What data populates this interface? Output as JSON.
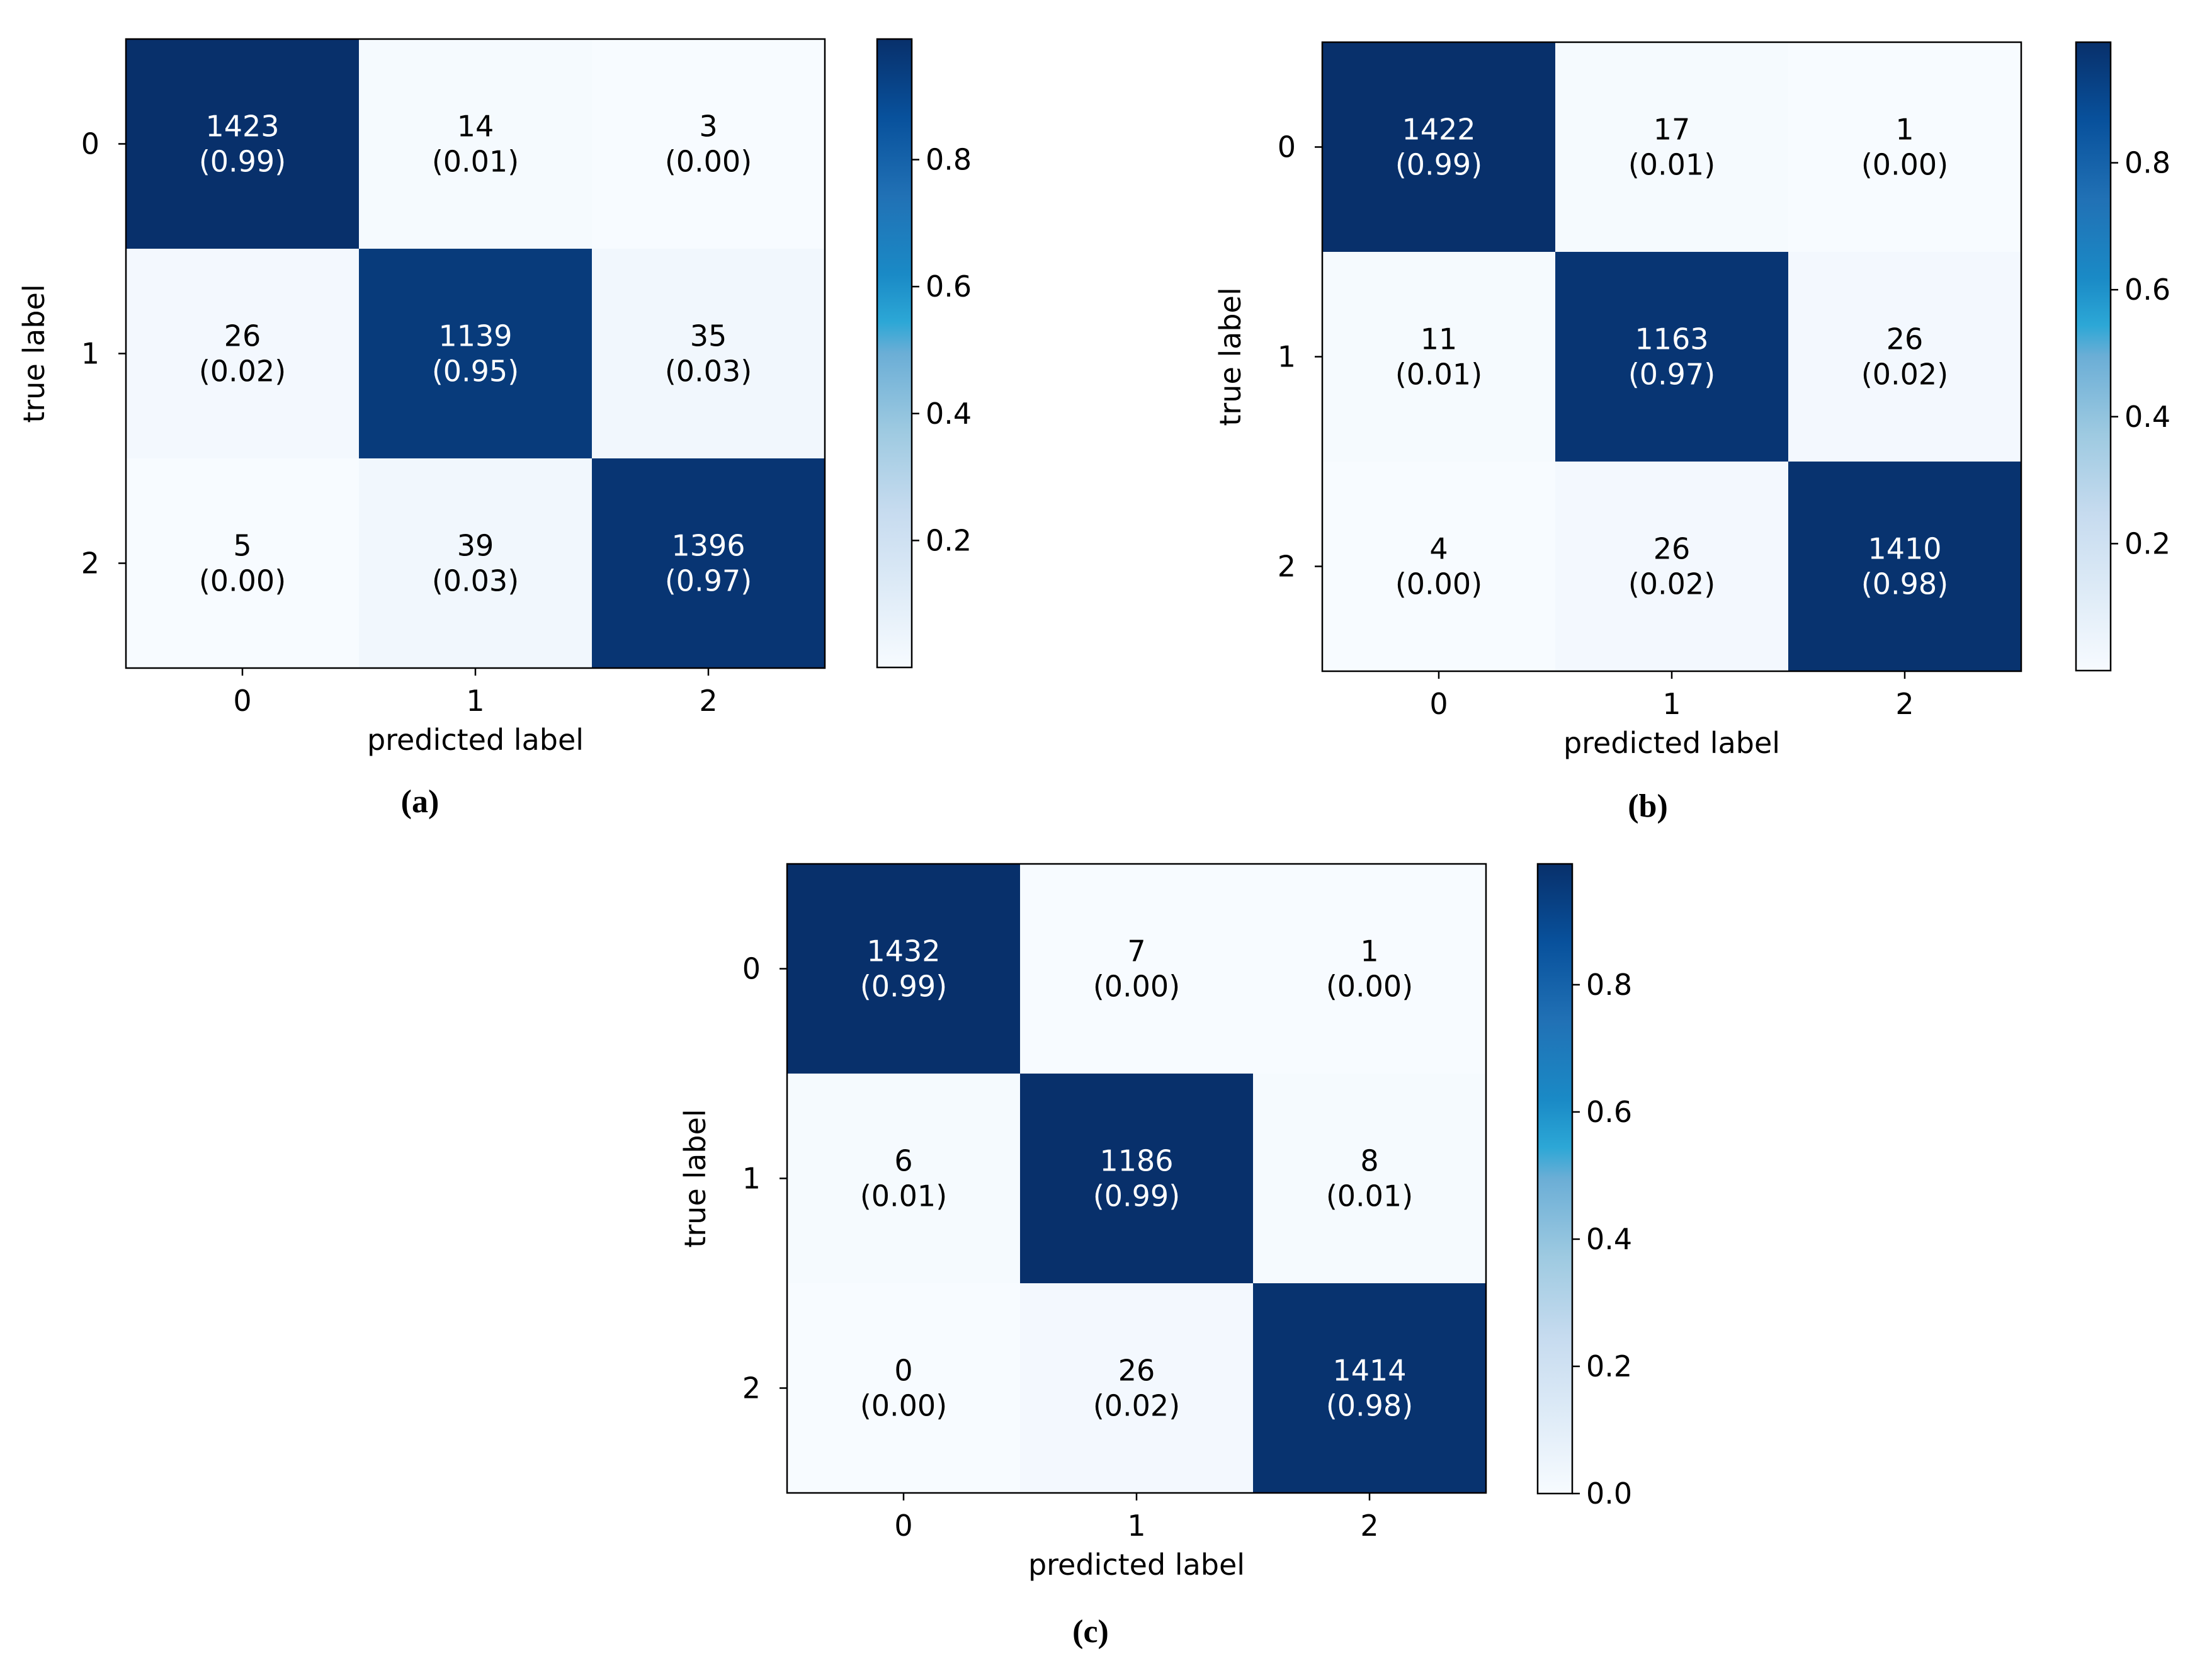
{
  "chart_data": [
    {
      "type": "heatmap",
      "caption": "(a)",
      "xlabel": "predicted label",
      "ylabel": "true label",
      "x_categories": [
        "0",
        "1",
        "2"
      ],
      "y_categories": [
        "0",
        "1",
        "2"
      ],
      "counts": [
        [
          1423,
          14,
          3
        ],
        [
          26,
          1139,
          35
        ],
        [
          5,
          39,
          1396
        ]
      ],
      "cell_labels": [
        [
          {
            "count": "1423",
            "norm": "(0.99)"
          },
          {
            "count": "14",
            "norm": "(0.01)"
          },
          {
            "count": "3",
            "norm": "(0.00)"
          }
        ],
        [
          {
            "count": "26",
            "norm": "(0.02)"
          },
          {
            "count": "1139",
            "norm": "(0.95)"
          },
          {
            "count": "35",
            "norm": "(0.03)"
          }
        ],
        [
          {
            "count": "5",
            "norm": "(0.00)"
          },
          {
            "count": "39",
            "norm": "(0.03)"
          },
          {
            "count": "1396",
            "norm": "(0.97)"
          }
        ]
      ],
      "normalized": [
        [
          0.99,
          0.01,
          0.0
        ],
        [
          0.02,
          0.95,
          0.03
        ],
        [
          0.0,
          0.03,
          0.97
        ]
      ],
      "colorbar": {
        "colormap": "Blues",
        "range": [
          0.0,
          0.99
        ],
        "ticks": [
          "0.2",
          "0.4",
          "0.6",
          "0.8"
        ]
      }
    },
    {
      "type": "heatmap",
      "caption": "(b)",
      "xlabel": "predicted label",
      "ylabel": "true label",
      "x_categories": [
        "0",
        "1",
        "2"
      ],
      "y_categories": [
        "0",
        "1",
        "2"
      ],
      "counts": [
        [
          1422,
          17,
          1
        ],
        [
          11,
          1163,
          26
        ],
        [
          4,
          26,
          1410
        ]
      ],
      "cell_labels": [
        [
          {
            "count": "1422",
            "norm": "(0.99)"
          },
          {
            "count": "17",
            "norm": "(0.01)"
          },
          {
            "count": "1",
            "norm": "(0.00)"
          }
        ],
        [
          {
            "count": "11",
            "norm": "(0.01)"
          },
          {
            "count": "1163",
            "norm": "(0.97)"
          },
          {
            "count": "26",
            "norm": "(0.02)"
          }
        ],
        [
          {
            "count": "4",
            "norm": "(0.00)"
          },
          {
            "count": "26",
            "norm": "(0.02)"
          },
          {
            "count": "1410",
            "norm": "(0.98)"
          }
        ]
      ],
      "normalized": [
        [
          0.99,
          0.01,
          0.0
        ],
        [
          0.01,
          0.97,
          0.02
        ],
        [
          0.0,
          0.02,
          0.98
        ]
      ],
      "colorbar": {
        "colormap": "Blues",
        "range": [
          0.0,
          0.99
        ],
        "ticks": [
          "0.2",
          "0.4",
          "0.6",
          "0.8"
        ]
      }
    },
    {
      "type": "heatmap",
      "caption": "(c)",
      "xlabel": "predicted label",
      "ylabel": "true label",
      "x_categories": [
        "0",
        "1",
        "2"
      ],
      "y_categories": [
        "0",
        "1",
        "2"
      ],
      "counts": [
        [
          1432,
          7,
          1
        ],
        [
          6,
          1186,
          8
        ],
        [
          0,
          26,
          1414
        ]
      ],
      "cell_labels": [
        [
          {
            "count": "1432",
            "norm": "(0.99)"
          },
          {
            "count": "7",
            "norm": "(0.00)"
          },
          {
            "count": "1",
            "norm": "(0.00)"
          }
        ],
        [
          {
            "count": "6",
            "norm": "(0.01)"
          },
          {
            "count": "1186",
            "norm": "(0.99)"
          },
          {
            "count": "8",
            "norm": "(0.01)"
          }
        ],
        [
          {
            "count": "0",
            "norm": "(0.00)"
          },
          {
            "count": "26",
            "norm": "(0.02)"
          },
          {
            "count": "1414",
            "norm": "(0.98)"
          }
        ]
      ],
      "normalized": [
        [
          0.99,
          0.0,
          0.0
        ],
        [
          0.01,
          0.99,
          0.01
        ],
        [
          0.0,
          0.02,
          0.98
        ]
      ],
      "colorbar": {
        "colormap": "Blues",
        "range": [
          0.0,
          0.99
        ],
        "ticks": [
          "0.0",
          "0.2",
          "0.4",
          "0.6",
          "0.8"
        ]
      }
    }
  ],
  "colors": {
    "dark_cell": "#08306b",
    "light_cell": "#f7fbff",
    "dark_text": "#ffffff",
    "light_text": "#000000",
    "axes": "#000000"
  }
}
